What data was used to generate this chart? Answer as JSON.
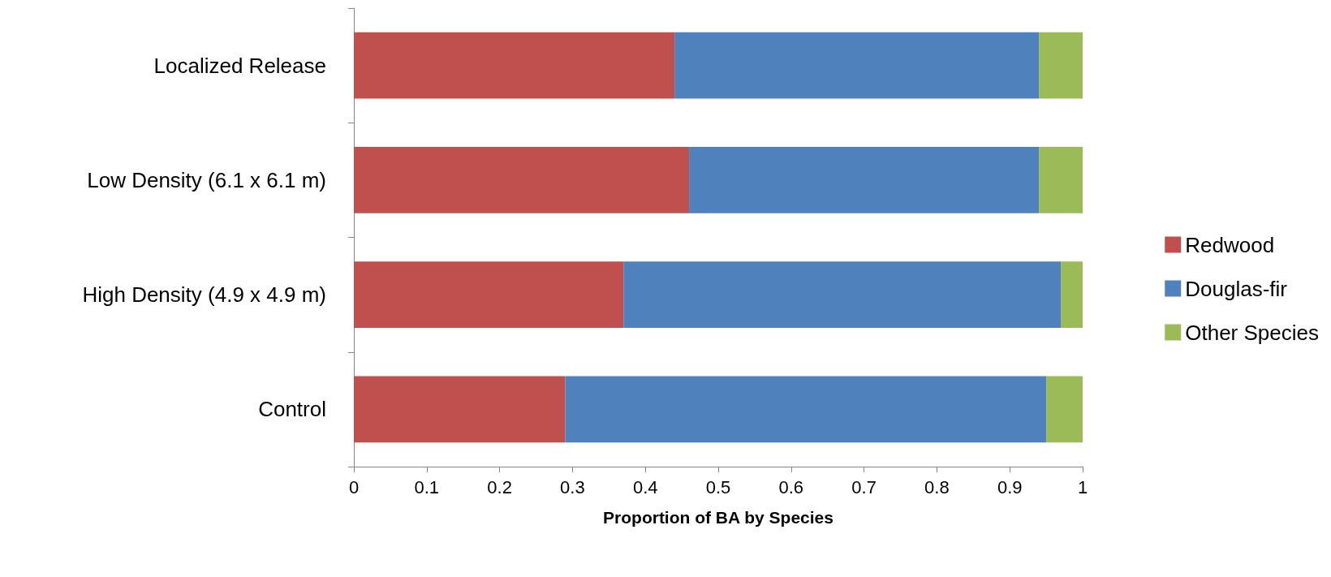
{
  "chart_data": {
    "type": "bar",
    "orientation": "horizontal",
    "stacked": true,
    "xlabel": "Proportion of BA by Species",
    "categories": [
      "Localized Release",
      "Low Density (6.1 x 6.1 m)",
      "High Density (4.9 x 4.9 m)",
      "Control"
    ],
    "series": [
      {
        "name": "Redwood",
        "color": "#c0504d",
        "values": [
          0.44,
          0.46,
          0.37,
          0.29
        ]
      },
      {
        "name": "Douglas-fir",
        "color": "#4f81bd",
        "values": [
          0.5,
          0.48,
          0.6,
          0.66
        ]
      },
      {
        "name": "Other Species",
        "color": "#9bbb59",
        "values": [
          0.06,
          0.06,
          0.03,
          0.05
        ]
      }
    ],
    "xlim": [
      0,
      1
    ],
    "xticks": [
      0,
      0.1,
      0.2,
      0.3,
      0.4,
      0.5,
      0.6,
      0.7,
      0.8,
      0.9,
      1
    ],
    "grid": false,
    "legend": "right"
  }
}
